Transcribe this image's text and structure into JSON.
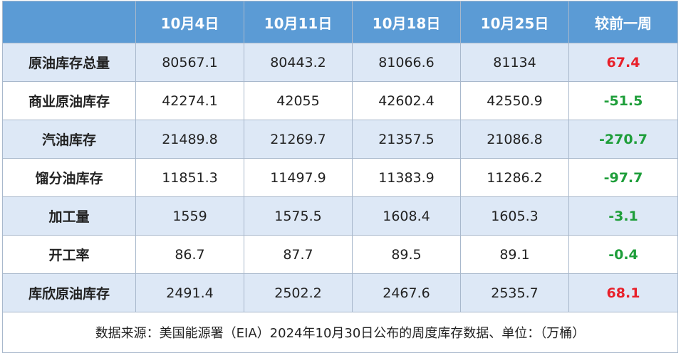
{
  "header": {
    "corner": "",
    "cols": [
      "10月4日",
      "10月11日",
      "10月18日",
      "10月25日",
      "较前一周"
    ]
  },
  "rows": [
    {
      "label": "原油库存总量",
      "values": [
        "80567.1",
        "80443.2",
        "81066.6",
        "81134"
      ],
      "change": "67.4",
      "direction": "up"
    },
    {
      "label": "商业原油库存",
      "values": [
        "42274.1",
        "42055",
        "42602.4",
        "42550.9"
      ],
      "change": "-51.5",
      "direction": "down"
    },
    {
      "label": "汽油库存",
      "values": [
        "21489.8",
        "21269.7",
        "21357.5",
        "21086.8"
      ],
      "change": "-270.7",
      "direction": "down"
    },
    {
      "label": "馏分油库存",
      "values": [
        "11851.3",
        "11497.9",
        "11383.9",
        "11286.2"
      ],
      "change": "-97.7",
      "direction": "down"
    },
    {
      "label": "加工量",
      "values": [
        "1559",
        "1575.5",
        "1608.4",
        "1605.3"
      ],
      "change": "-3.1",
      "direction": "down"
    },
    {
      "label": "开工率",
      "values": [
        "86.7",
        "87.7",
        "89.5",
        "89.1"
      ],
      "change": "-0.4",
      "direction": "down"
    },
    {
      "label": "库欣原油库存",
      "values": [
        "2491.4",
        "2502.2",
        "2467.6",
        "2535.7"
      ],
      "change": "68.1",
      "direction": "up"
    }
  ],
  "footer": "数据来源：美国能源署（EIA）2024年10月30日公布的周度库存数据、单位：（万桶）",
  "colors": {
    "header_bg": "#5b9bd5",
    "row_alt_bg": "#dde8f6",
    "up": "#e8202a",
    "down": "#1e9e3a"
  }
}
